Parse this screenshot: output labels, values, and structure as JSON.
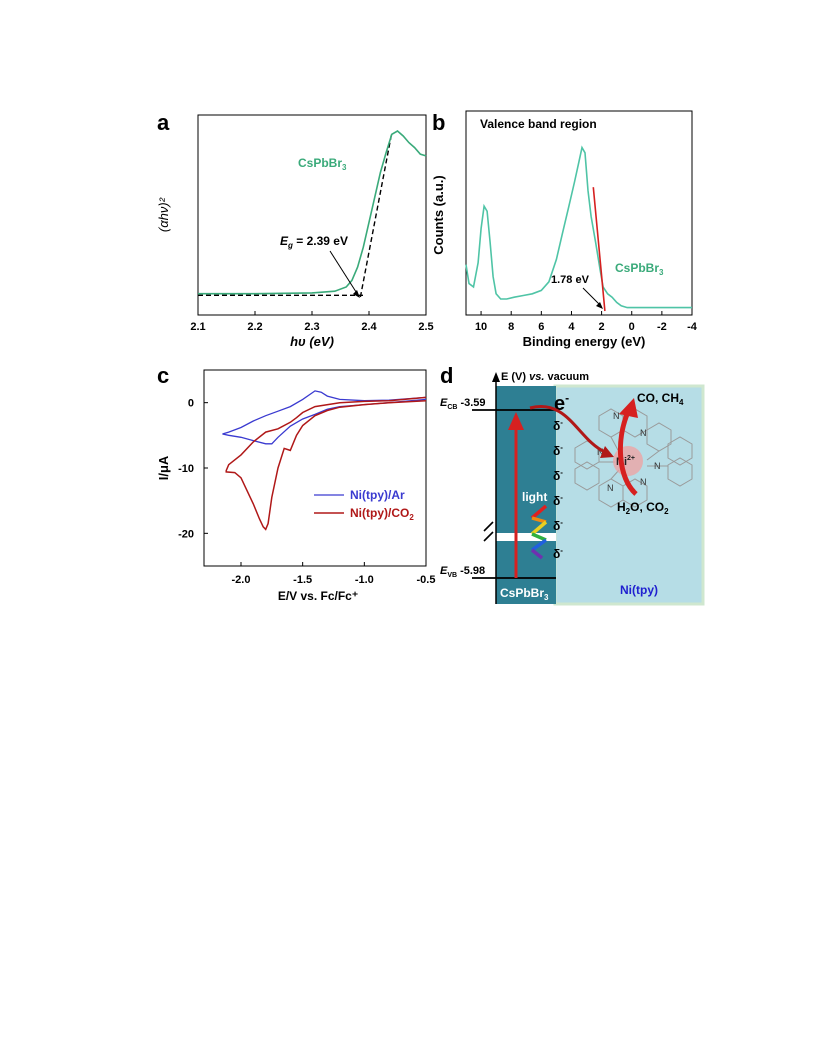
{
  "panels": {
    "a": {
      "label": "a",
      "ylabel": "(αhν)²",
      "xlabel": "hυ (eV)",
      "series_label": "CsPbBr",
      "series_label_sub": "3",
      "annotation_eg_prefix": "E",
      "annotation_eg_sub": "g",
      "annotation_eg_rest": " = 2.39 eV"
    },
    "b": {
      "label": "b",
      "title": "Valence band region",
      "ylabel": "Counts (a.u.)",
      "xlabel": "Binding energy (eV)",
      "series_label": "CsPbBr",
      "series_label_sub": "3",
      "annotation": "1.78 eV"
    },
    "c": {
      "label": "c",
      "ylabel": "I/μA",
      "xlabel": "E/V vs. Fc/Fc⁺",
      "legend_ar": "Ni(tpy)/Ar",
      "legend_co2_main": "Ni(tpy)/CO",
      "legend_co2_sub": "2"
    },
    "d": {
      "label": "d",
      "axis_title_pre": "E (V) ",
      "axis_title_vs": "vs.",
      "axis_title_post": " vacuum",
      "ecb_main": "E",
      "ecb_sub": "CB",
      "ecb_value": "-3.59",
      "evb_main": "E",
      "evb_sub": "VB",
      "evb_value": "-5.98",
      "electron": "e",
      "electron_sup": "-",
      "delta": "δ",
      "delta_sup": "-",
      "light": "light",
      "product_main": "CO, CH",
      "product_sub": "4",
      "reactant_h2o": "H",
      "reactant_h2o_sub": "2",
      "reactant_rest": "O, CO",
      "reactant_rest_sub": "2",
      "ni_center": "Ni",
      "ni_charge": "2+",
      "n_atom": "N",
      "material_main": "CsPbBr",
      "material_sub": "3",
      "catalyst": "Ni(tpy)"
    }
  },
  "colors": {
    "green": "#3aaa7a",
    "blue": "#3a3ad0",
    "darkred": "#b01818",
    "red": "#d62020",
    "teal_dark": "#2e7f93",
    "teal_light": "#b6dde6"
  },
  "chart_data": [
    {
      "type": "line",
      "panel": "a",
      "xlim": [
        2.1,
        2.5
      ],
      "xticks": [
        2.1,
        2.2,
        2.3,
        2.4,
        2.5
      ],
      "ylim": [
        0,
        1
      ],
      "series": [
        {
          "x": [
            2.1,
            2.2,
            2.3,
            2.34,
            2.36,
            2.37,
            2.38,
            2.39,
            2.4,
            2.41,
            2.42,
            2.43,
            2.44,
            2.45,
            2.46,
            2.47,
            2.48,
            2.49,
            2.5
          ],
          "y": [
            0.02,
            0.02,
            0.025,
            0.035,
            0.06,
            0.1,
            0.18,
            0.3,
            0.45,
            0.6,
            0.75,
            0.87,
            0.98,
            1.0,
            0.97,
            0.93,
            0.9,
            0.86,
            0.85
          ]
        }
      ],
      "fits": [
        {
          "x": [
            2.1,
            2.39
          ],
          "y": [
            0.01,
            0.01
          ]
        },
        {
          "x": [
            2.385,
            2.44
          ],
          "y": [
            0.0,
            0.99
          ]
        }
      ],
      "eg": 2.39
    },
    {
      "type": "line",
      "panel": "b",
      "xlim": [
        11,
        -4
      ],
      "xticks": [
        10,
        8,
        6,
        4,
        2,
        0,
        -2,
        -4
      ],
      "ylim": [
        0,
        1
      ],
      "series": [
        {
          "x": [
            11.0,
            10.8,
            10.5,
            10.2,
            10.0,
            9.8,
            9.6,
            9.4,
            9.2,
            9.0,
            8.7,
            8.3,
            7.8,
            7.2,
            6.6,
            6.0,
            5.5,
            5.0,
            4.6,
            4.2,
            3.8,
            3.5,
            3.3,
            3.1,
            2.9,
            2.7,
            2.4,
            2.1,
            1.9,
            1.6,
            1.3,
            1.0,
            0.7,
            0.3,
            0.0,
            -1.0,
            -2.0,
            -3.0,
            -4.0
          ],
          "y": [
            0.27,
            0.16,
            0.14,
            0.28,
            0.48,
            0.61,
            0.58,
            0.4,
            0.2,
            0.1,
            0.07,
            0.07,
            0.08,
            0.09,
            0.1,
            0.12,
            0.17,
            0.3,
            0.45,
            0.6,
            0.75,
            0.87,
            0.95,
            0.92,
            0.7,
            0.55,
            0.4,
            0.24,
            0.14,
            0.1,
            0.08,
            0.05,
            0.03,
            0.02,
            0.02,
            0.02,
            0.02,
            0.02,
            0.02
          ]
        }
      ],
      "fit": {
        "x": [
          2.55,
          1.78
        ],
        "y": [
          0.72,
          0.0
        ]
      },
      "vbm": 1.78
    },
    {
      "type": "line",
      "panel": "c",
      "xlim": [
        -2.3,
        -0.5
      ],
      "xticks": [
        -2.0,
        -1.5,
        -1.0,
        -0.5
      ],
      "ylim": [
        -25,
        5
      ],
      "yticks": [
        0,
        -10,
        -20
      ],
      "series": [
        {
          "name": "Ni(tpy)/Ar",
          "x": [
            -0.5,
            -0.8,
            -1.0,
            -1.2,
            -1.3,
            -1.35,
            -1.4,
            -1.5,
            -1.6,
            -1.7,
            -1.8,
            -1.9,
            -2.0,
            -2.1,
            -2.15,
            -2.1,
            -2.0,
            -1.9,
            -1.8,
            -1.75,
            -1.7,
            -1.6,
            -1.5,
            -1.4,
            -1.3,
            -1.2,
            -1.0,
            -0.8,
            -0.5
          ],
          "y": [
            0.8,
            0.4,
            0.3,
            0.5,
            1.0,
            1.6,
            1.8,
            0.5,
            -0.6,
            -1.3,
            -2.0,
            -2.8,
            -3.8,
            -4.5,
            -4.8,
            -5.0,
            -5.3,
            -5.8,
            -6.3,
            -6.3,
            -5.3,
            -3.6,
            -2.5,
            -1.8,
            -1.0,
            -0.6,
            -0.3,
            0.0,
            0.5
          ]
        },
        {
          "name": "Ni(tpy)/CO₂",
          "x": [
            -0.5,
            -0.8,
            -1.0,
            -1.2,
            -1.4,
            -1.5,
            -1.55,
            -1.6,
            -1.7,
            -1.8,
            -1.9,
            -2.0,
            -2.1,
            -2.12,
            -2.12,
            -2.05,
            -2.0,
            -1.9,
            -1.85,
            -1.82,
            -1.8,
            -1.78,
            -1.75,
            -1.7,
            -1.65,
            -1.6,
            -1.55,
            -1.5,
            -1.4,
            -1.3,
            -1.2,
            -1.0,
            -0.8,
            -0.5
          ],
          "y": [
            0.8,
            0.3,
            0.2,
            0.0,
            -0.6,
            -1.5,
            -2.3,
            -3.0,
            -4.0,
            -4.5,
            -6.0,
            -8.0,
            -9.5,
            -10.4,
            -10.6,
            -10.7,
            -11.5,
            -15.5,
            -17.8,
            -19.0,
            -19.4,
            -18.5,
            -14.5,
            -10.0,
            -7.0,
            -7.3,
            -5.0,
            -3.5,
            -2.0,
            -1.2,
            -0.7,
            -0.3,
            0.0,
            0.3
          ]
        }
      ]
    }
  ]
}
